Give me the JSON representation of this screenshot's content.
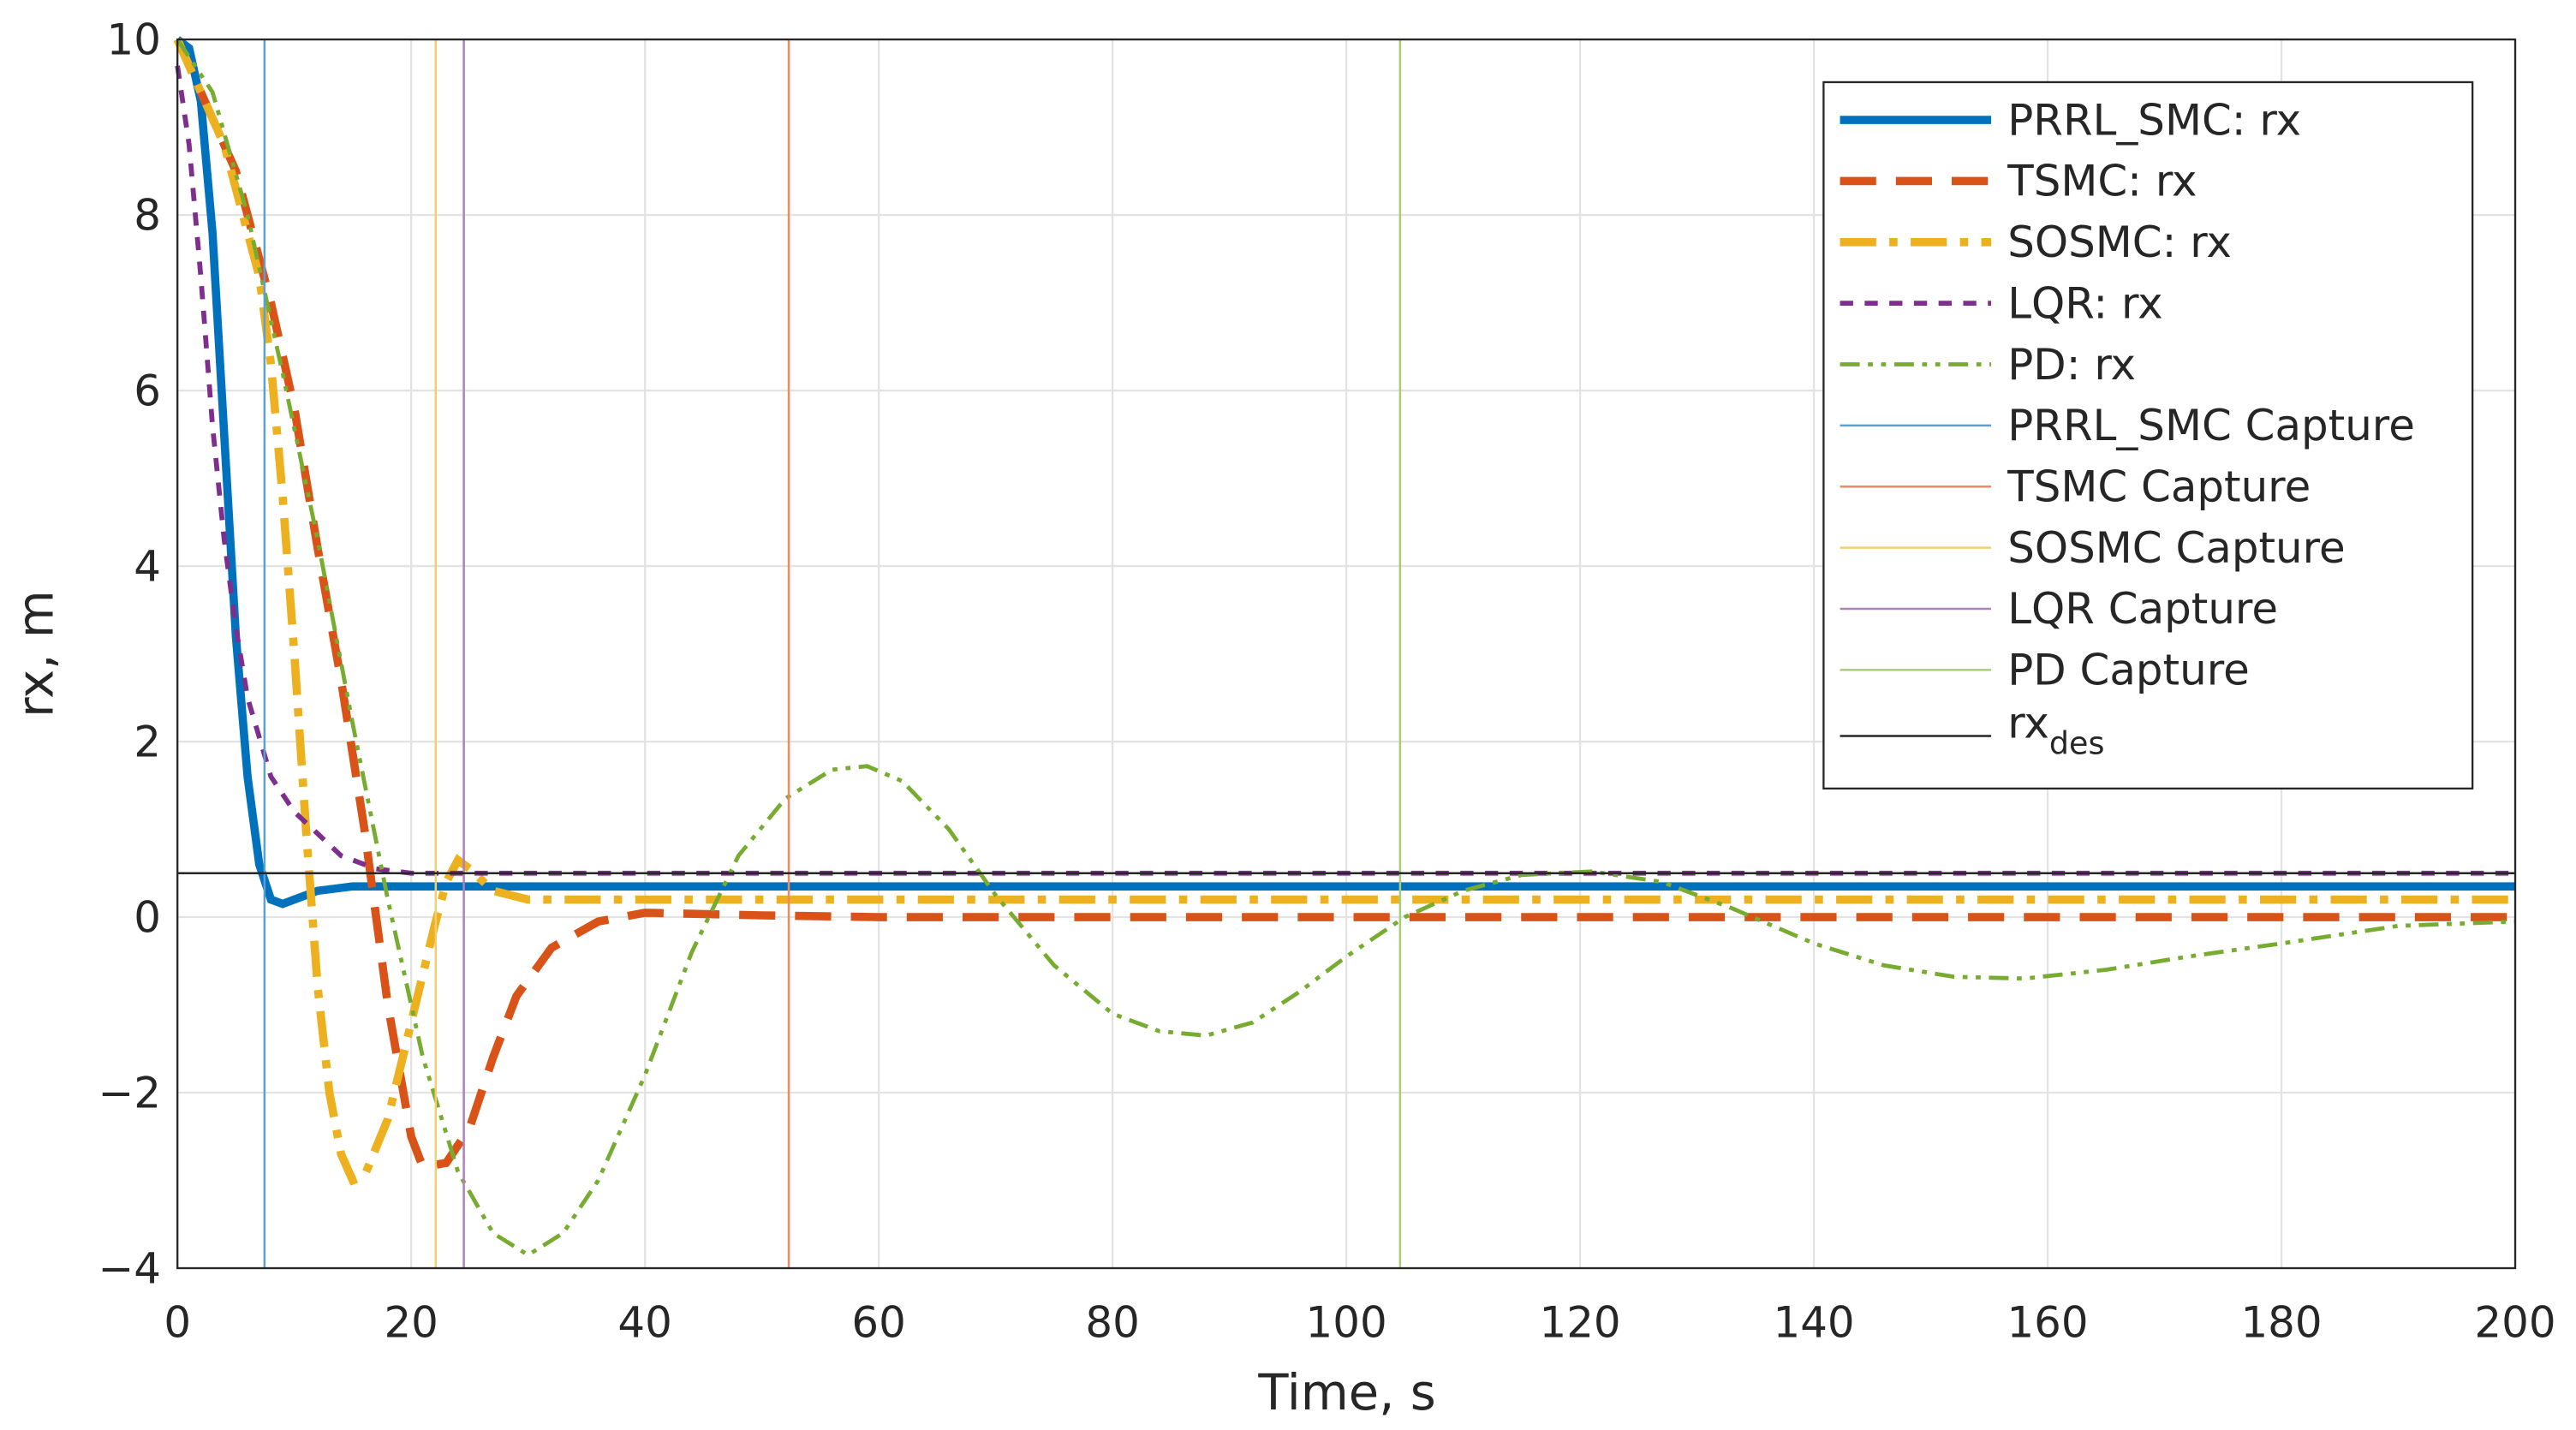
{
  "chart_data": {
    "type": "line",
    "xlabel": "Time, s",
    "ylabel": "rx, m",
    "xlim": [
      0,
      200
    ],
    "ylim": [
      -4,
      10
    ],
    "xticks": [
      0,
      20,
      40,
      60,
      80,
      100,
      120,
      140,
      160,
      180,
      200
    ],
    "yticks": [
      {
        "value": -4,
        "label": "−4"
      },
      {
        "value": -2,
        "label": "−2"
      },
      0,
      2,
      4,
      6,
      8,
      10
    ],
    "grid": true,
    "legend": "northeast",
    "series": [
      {
        "name": "PRRL_SMC: rx",
        "color": "#0072BD",
        "style": "solid",
        "width": 5,
        "x": [
          0,
          1,
          2,
          3,
          4,
          5,
          6,
          7,
          8,
          9,
          10,
          12,
          15,
          20,
          200
        ],
        "values": [
          10,
          9.9,
          9.3,
          7.8,
          5.5,
          3.2,
          1.6,
          0.6,
          0.2,
          0.15,
          0.2,
          0.3,
          0.35,
          0.35,
          0.35
        ]
      },
      {
        "name": "TSMC: rx",
        "color": "#D95319",
        "style": "dashed",
        "width": 5,
        "x": [
          0,
          5,
          8,
          10,
          12,
          14,
          16,
          18,
          20,
          21,
          23,
          25,
          27,
          29,
          32,
          36,
          40,
          50,
          60,
          200
        ],
        "values": [
          10,
          8.5,
          7,
          5.8,
          4.2,
          2.7,
          1,
          -1,
          -2.5,
          -2.85,
          -2.8,
          -2.4,
          -1.6,
          -0.9,
          -0.35,
          -0.05,
          0.05,
          0.02,
          0,
          0
        ]
      },
      {
        "name": "SOSMC: rx",
        "color": "#EDB120",
        "style": "dashdot",
        "width": 5,
        "x": [
          0,
          4,
          7,
          8,
          9,
          10,
          11,
          12,
          13,
          14,
          15,
          16,
          18,
          20,
          22,
          23,
          24,
          25,
          27,
          30,
          200
        ],
        "values": [
          10,
          8.8,
          7.3,
          6.3,
          4.8,
          3,
          1,
          -0.8,
          -2,
          -2.7,
          -3,
          -2.95,
          -2.3,
          -1.2,
          -0.1,
          0.4,
          0.65,
          0.55,
          0.3,
          0.2,
          0.2
        ]
      },
      {
        "name": "LQR: rx",
        "color": "#7E2F8E",
        "style": "dotted",
        "width": 3,
        "x": [
          0,
          1,
          2,
          3,
          4,
          5,
          6,
          8,
          10,
          12,
          14,
          17,
          20,
          200
        ],
        "values": [
          9.7,
          8.8,
          7.3,
          5.6,
          4.3,
          3.3,
          2.5,
          1.6,
          1.2,
          0.95,
          0.7,
          0.55,
          0.5,
          0.5
        ]
      },
      {
        "name": "PD: rx",
        "color": "#77AC30",
        "style": "dashdotdot",
        "width": 2.5,
        "x": [
          0,
          3,
          6,
          9,
          12,
          15,
          18,
          21,
          24,
          27,
          30,
          33,
          36,
          40,
          44,
          48,
          52,
          56,
          59,
          62,
          66,
          70,
          75,
          80,
          84,
          88,
          92,
          96,
          100,
          105,
          110,
          115,
          121,
          127,
          133,
          140,
          146,
          152,
          158,
          165,
          172,
          180,
          190,
          200
        ],
        "values": [
          10,
          9.4,
          8,
          6.2,
          4.3,
          2.2,
          0.2,
          -1.6,
          -2.9,
          -3.6,
          -3.85,
          -3.6,
          -3,
          -1.8,
          -0.4,
          0.7,
          1.35,
          1.68,
          1.72,
          1.55,
          1,
          0.25,
          -0.55,
          -1.1,
          -1.3,
          -1.35,
          -1.2,
          -0.85,
          -0.45,
          0,
          0.3,
          0.48,
          0.52,
          0.4,
          0.1,
          -0.3,
          -0.55,
          -0.68,
          -0.7,
          -0.6,
          -0.45,
          -0.3,
          -0.1,
          -0.05
        ]
      }
    ],
    "captures": [
      {
        "name": "PRRL_SMC Capture",
        "color": "#5AA0D6",
        "x": 7.45
      },
      {
        "name": "TSMC Capture",
        "color": "#EE8A62",
        "x": 52.3
      },
      {
        "name": "SOSMC Capture",
        "color": "#F4CE6E",
        "x": 22.1
      },
      {
        "name": "LQR Capture",
        "color": "#B07FBE",
        "x": 24.5
      },
      {
        "name": "PD Capture",
        "color": "#A6CE78",
        "x": 104.6
      }
    ],
    "reference": {
      "name": "rx",
      "subscript": "des",
      "color": "#262626",
      "value": 0.5
    }
  }
}
